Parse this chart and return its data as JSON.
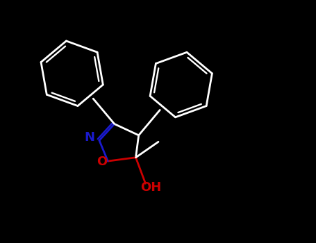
{
  "background": "#000000",
  "bond_color_white": "#ffffff",
  "N_color": "#1a1acd",
  "O_color": "#cc0000",
  "label_N": "N",
  "label_O": "O",
  "label_OH": "OH",
  "fig_width": 4.55,
  "fig_height": 3.5,
  "dpi": 100,
  "line_width": 2.0,
  "font_size_atoms": 11,
  "font_size_OH": 11
}
